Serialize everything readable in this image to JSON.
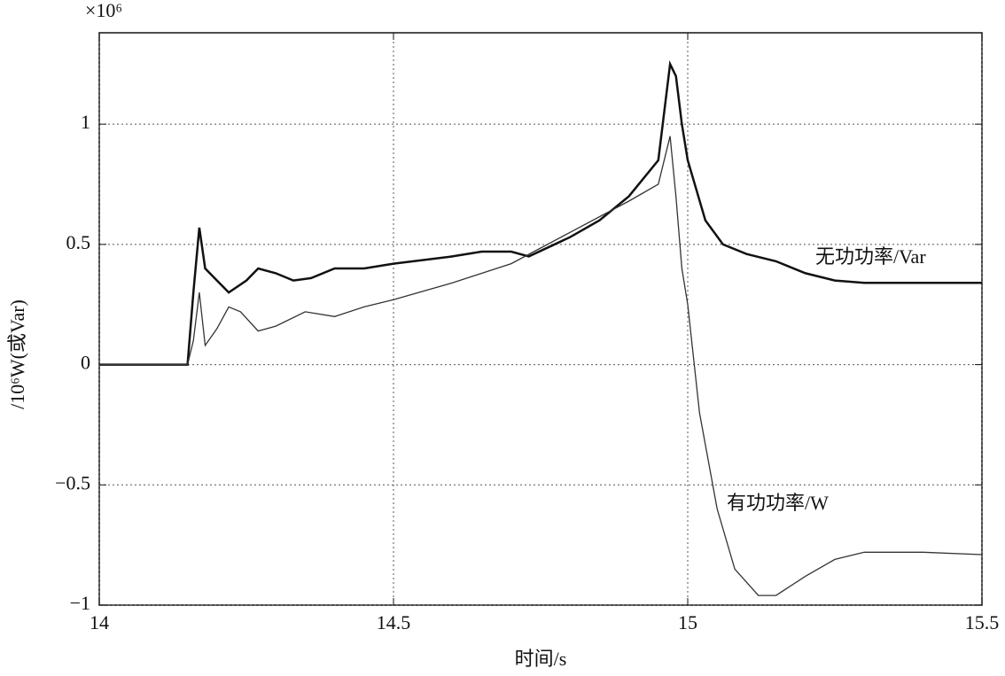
{
  "chart_data": {
    "type": "line",
    "x_label": "时间/s",
    "y_label": "/10⁶W(或Var)",
    "y_multiplier": "×10⁶",
    "annotations": [
      "无功功率/Var",
      "有功功率/W"
    ],
    "xlim": [
      14,
      15.5
    ],
    "xticks": [
      14,
      14.5,
      15,
      15.5
    ],
    "ylim": [
      -1,
      1.38
    ],
    "yticks": [
      {
        "value": -1,
        "label": "−1"
      },
      {
        "value": -0.5,
        "label": "−0.5"
      },
      0,
      0.5,
      1
    ],
    "grid": true,
    "series": [
      {
        "name": "无功功率/Var",
        "color": "#111111",
        "x": [
          14.0,
          14.15,
          14.16,
          14.17,
          14.18,
          14.2,
          14.22,
          14.25,
          14.27,
          14.3,
          14.33,
          14.36,
          14.4,
          14.45,
          14.5,
          14.6,
          14.65,
          14.7,
          14.73,
          14.8,
          14.85,
          14.9,
          14.95,
          14.97,
          14.98,
          14.99,
          15.0,
          15.03,
          15.06,
          15.1,
          15.15,
          15.2,
          15.25,
          15.3,
          15.5
        ],
        "values": [
          0,
          0,
          0.3,
          0.57,
          0.4,
          0.35,
          0.3,
          0.35,
          0.4,
          0.38,
          0.35,
          0.36,
          0.4,
          0.4,
          0.42,
          0.45,
          0.47,
          0.47,
          0.45,
          0.53,
          0.6,
          0.7,
          0.85,
          1.25,
          1.2,
          1.0,
          0.85,
          0.6,
          0.5,
          0.46,
          0.43,
          0.38,
          0.35,
          0.34,
          0.34
        ]
      },
      {
        "name": "有功功率/W",
        "color": "#333333",
        "x": [
          14.0,
          14.15,
          14.16,
          14.17,
          14.18,
          14.2,
          14.22,
          14.24,
          14.27,
          14.3,
          14.35,
          14.4,
          14.45,
          14.5,
          14.6,
          14.7,
          14.8,
          14.9,
          14.95,
          14.97,
          14.98,
          14.99,
          15.0,
          15.02,
          15.05,
          15.08,
          15.12,
          15.15,
          15.2,
          15.25,
          15.3,
          15.4,
          15.5
        ],
        "values": [
          0,
          0,
          0.1,
          0.3,
          0.08,
          0.15,
          0.24,
          0.22,
          0.14,
          0.16,
          0.22,
          0.2,
          0.24,
          0.27,
          0.34,
          0.42,
          0.55,
          0.68,
          0.75,
          0.95,
          0.7,
          0.4,
          0.25,
          -0.2,
          -0.6,
          -0.85,
          -0.96,
          -0.96,
          -0.88,
          -0.81,
          -0.78,
          -0.78,
          -0.79
        ]
      }
    ]
  }
}
